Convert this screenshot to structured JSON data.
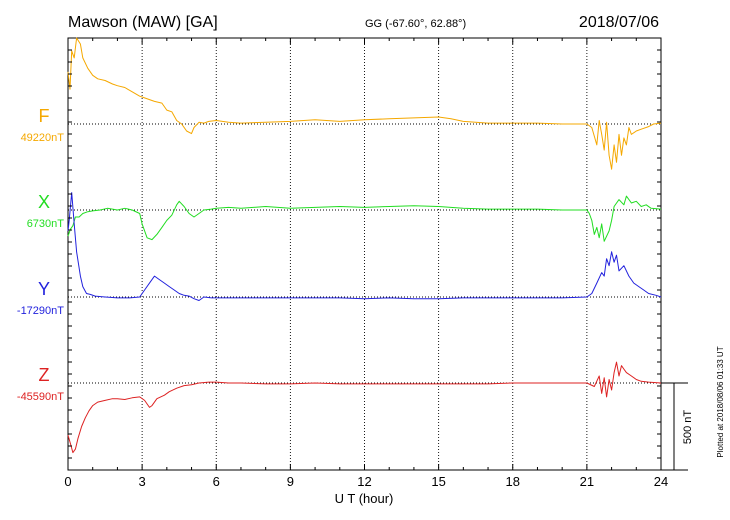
{
  "header": {
    "station": "Mawson (MAW)  [GA]",
    "coords": "GG (-67.60°,  62.88°)",
    "date": "2018/07/06"
  },
  "plotted_note": "Plotted at 2018/08/06 01:33 UT",
  "chart_data": {
    "type": "line",
    "xlabel": "U T (hour)",
    "xlim": [
      0,
      24
    ],
    "x_ticks": [
      0,
      3,
      6,
      9,
      12,
      15,
      18,
      21,
      24
    ],
    "x_tick_labels": [
      "0",
      "3",
      "6",
      "9",
      "12",
      "15",
      "18",
      "21",
      "24"
    ],
    "scale_bar": {
      "label": "500 nT",
      "value_nT": 500
    },
    "grid": true,
    "series": [
      {
        "name": "F",
        "baseline_label": "49220nT",
        "baseline_nT": 49220,
        "color": "#f5a800",
        "points": [
          [
            0.0,
            300
          ],
          [
            0.08,
            200
          ],
          [
            0.15,
            420
          ],
          [
            0.25,
            380
          ],
          [
            0.35,
            520
          ],
          [
            0.5,
            460
          ],
          [
            0.6,
            380
          ],
          [
            0.8,
            320
          ],
          [
            1.0,
            280
          ],
          [
            1.2,
            260
          ],
          [
            1.5,
            250
          ],
          [
            1.8,
            230
          ],
          [
            2.0,
            220
          ],
          [
            2.3,
            210
          ],
          [
            2.6,
            185
          ],
          [
            2.9,
            160
          ],
          [
            3.1,
            150
          ],
          [
            3.3,
            140
          ],
          [
            3.5,
            130
          ],
          [
            3.8,
            120
          ],
          [
            4.0,
            80
          ],
          [
            4.2,
            70
          ],
          [
            4.4,
            20
          ],
          [
            4.6,
            0
          ],
          [
            4.8,
            -40
          ],
          [
            5.0,
            -55
          ],
          [
            5.1,
            -20
          ],
          [
            5.3,
            10
          ],
          [
            5.5,
            5
          ],
          [
            5.7,
            15
          ],
          [
            6.0,
            20
          ],
          [
            6.5,
            10
          ],
          [
            7.0,
            5
          ],
          [
            8.0,
            10
          ],
          [
            9.0,
            15
          ],
          [
            10.0,
            25
          ],
          [
            11.0,
            15
          ],
          [
            12.0,
            25
          ],
          [
            13.0,
            30
          ],
          [
            14.0,
            35
          ],
          [
            15.0,
            40
          ],
          [
            15.5,
            30
          ],
          [
            16.0,
            15
          ],
          [
            17.0,
            5
          ],
          [
            18.0,
            5
          ],
          [
            19.0,
            5
          ],
          [
            20.0,
            0
          ],
          [
            21.0,
            0
          ],
          [
            21.2,
            -20
          ],
          [
            21.4,
            -120
          ],
          [
            21.5,
            20
          ],
          [
            21.6,
            -60
          ],
          [
            21.7,
            -150
          ],
          [
            21.8,
            10
          ],
          [
            21.9,
            -180
          ],
          [
            22.0,
            -260
          ],
          [
            22.1,
            -120
          ],
          [
            22.2,
            -220
          ],
          [
            22.3,
            -60
          ],
          [
            22.4,
            -180
          ],
          [
            22.5,
            -80
          ],
          [
            22.6,
            -120
          ],
          [
            22.7,
            -20
          ],
          [
            22.8,
            -60
          ],
          [
            23.0,
            -40
          ],
          [
            23.2,
            -30
          ],
          [
            23.5,
            -15
          ],
          [
            23.7,
            0
          ],
          [
            24.0,
            5
          ]
        ]
      },
      {
        "name": "X",
        "baseline_label": "6730nT",
        "baseline_nT": 6730,
        "color": "#22dd22",
        "points": [
          [
            0.0,
            -150
          ],
          [
            0.1,
            -110
          ],
          [
            0.2,
            -90
          ],
          [
            0.3,
            -40
          ],
          [
            0.45,
            -40
          ],
          [
            0.6,
            -20
          ],
          [
            0.8,
            -10
          ],
          [
            1.0,
            -5
          ],
          [
            1.3,
            0
          ],
          [
            1.6,
            10
          ],
          [
            2.0,
            0
          ],
          [
            2.3,
            10
          ],
          [
            2.6,
            0
          ],
          [
            2.9,
            -20
          ],
          [
            3.0,
            -80
          ],
          [
            3.2,
            -160
          ],
          [
            3.4,
            -170
          ],
          [
            3.6,
            -140
          ],
          [
            3.8,
            -100
          ],
          [
            4.0,
            -60
          ],
          [
            4.2,
            -30
          ],
          [
            4.4,
            30
          ],
          [
            4.5,
            50
          ],
          [
            4.7,
            20
          ],
          [
            4.9,
            -20
          ],
          [
            5.1,
            -40
          ],
          [
            5.3,
            -20
          ],
          [
            5.5,
            0
          ],
          [
            5.8,
            5
          ],
          [
            6.0,
            10
          ],
          [
            6.5,
            15
          ],
          [
            7.0,
            10
          ],
          [
            8.0,
            20
          ],
          [
            9.0,
            10
          ],
          [
            10.0,
            15
          ],
          [
            11.0,
            20
          ],
          [
            12.0,
            15
          ],
          [
            13.0,
            20
          ],
          [
            14.0,
            25
          ],
          [
            15.0,
            20
          ],
          [
            16.0,
            10
          ],
          [
            17.0,
            5
          ],
          [
            18.0,
            5
          ],
          [
            19.0,
            5
          ],
          [
            20.0,
            0
          ],
          [
            21.0,
            0
          ],
          [
            21.1,
            -20
          ],
          [
            21.2,
            -60
          ],
          [
            21.3,
            -140
          ],
          [
            21.4,
            -100
          ],
          [
            21.5,
            -160
          ],
          [
            21.6,
            -80
          ],
          [
            21.7,
            -180
          ],
          [
            21.9,
            -120
          ],
          [
            22.0,
            -60
          ],
          [
            22.1,
            20
          ],
          [
            22.3,
            60
          ],
          [
            22.5,
            30
          ],
          [
            22.6,
            80
          ],
          [
            22.8,
            40
          ],
          [
            23.0,
            50
          ],
          [
            23.2,
            20
          ],
          [
            23.4,
            30
          ],
          [
            23.6,
            10
          ],
          [
            24.0,
            5
          ]
        ]
      },
      {
        "name": "Y",
        "baseline_label": "-17290nT",
        "baseline_nT": -17290,
        "color": "#2222dd",
        "points": [
          [
            0.0,
            380
          ],
          [
            0.05,
            440
          ],
          [
            0.15,
            600
          ],
          [
            0.25,
            420
          ],
          [
            0.35,
            260
          ],
          [
            0.5,
            120
          ],
          [
            0.6,
            60
          ],
          [
            0.75,
            20
          ],
          [
            0.9,
            15
          ],
          [
            1.1,
            5
          ],
          [
            1.5,
            0
          ],
          [
            2.0,
            -5
          ],
          [
            2.5,
            -5
          ],
          [
            2.9,
            0
          ],
          [
            3.1,
            40
          ],
          [
            3.3,
            80
          ],
          [
            3.5,
            120
          ],
          [
            3.7,
            100
          ],
          [
            3.9,
            80
          ],
          [
            4.1,
            60
          ],
          [
            4.3,
            40
          ],
          [
            4.5,
            20
          ],
          [
            4.7,
            10
          ],
          [
            4.9,
            5
          ],
          [
            5.1,
            -10
          ],
          [
            5.3,
            -20
          ],
          [
            5.5,
            0
          ],
          [
            5.8,
            -5
          ],
          [
            6.0,
            -5
          ],
          [
            7.0,
            -5
          ],
          [
            8.0,
            -5
          ],
          [
            9.0,
            -5
          ],
          [
            10.0,
            -5
          ],
          [
            11.0,
            -5
          ],
          [
            12.0,
            -10
          ],
          [
            13.0,
            -5
          ],
          [
            14.0,
            -10
          ],
          [
            15.0,
            -10
          ],
          [
            16.0,
            -5
          ],
          [
            17.0,
            -5
          ],
          [
            18.0,
            -5
          ],
          [
            19.0,
            -5
          ],
          [
            20.0,
            -5
          ],
          [
            21.0,
            0
          ],
          [
            21.2,
            20
          ],
          [
            21.4,
            80
          ],
          [
            21.6,
            140
          ],
          [
            21.7,
            120
          ],
          [
            21.8,
            220
          ],
          [
            21.9,
            180
          ],
          [
            22.0,
            260
          ],
          [
            22.1,
            200
          ],
          [
            22.2,
            240
          ],
          [
            22.3,
            150
          ],
          [
            22.5,
            180
          ],
          [
            22.7,
            120
          ],
          [
            22.9,
            80
          ],
          [
            23.1,
            60
          ],
          [
            23.3,
            40
          ],
          [
            23.5,
            20
          ],
          [
            23.8,
            10
          ],
          [
            24.0,
            0
          ]
        ]
      },
      {
        "name": "Z",
        "baseline_label": "-45590nT",
        "baseline_nT": -45590,
        "color": "#dd2222",
        "points": [
          [
            0.0,
            -300
          ],
          [
            0.1,
            -350
          ],
          [
            0.2,
            -400
          ],
          [
            0.3,
            -380
          ],
          [
            0.4,
            -320
          ],
          [
            0.55,
            -250
          ],
          [
            0.7,
            -200
          ],
          [
            0.85,
            -160
          ],
          [
            1.0,
            -130
          ],
          [
            1.2,
            -110
          ],
          [
            1.5,
            -100
          ],
          [
            1.8,
            -90
          ],
          [
            2.0,
            -90
          ],
          [
            2.3,
            -95
          ],
          [
            2.6,
            -85
          ],
          [
            2.9,
            -80
          ],
          [
            3.1,
            -100
          ],
          [
            3.3,
            -140
          ],
          [
            3.4,
            -130
          ],
          [
            3.6,
            -90
          ],
          [
            3.9,
            -70
          ],
          [
            4.1,
            -50
          ],
          [
            4.4,
            -30
          ],
          [
            4.7,
            -15
          ],
          [
            5.0,
            -10
          ],
          [
            5.3,
            0
          ],
          [
            5.7,
            5
          ],
          [
            6.0,
            5
          ],
          [
            6.5,
            0
          ],
          [
            7.0,
            0
          ],
          [
            8.0,
            -5
          ],
          [
            9.0,
            -5
          ],
          [
            10.0,
            0
          ],
          [
            11.0,
            -5
          ],
          [
            12.0,
            -5
          ],
          [
            13.0,
            -5
          ],
          [
            14.0,
            -5
          ],
          [
            15.0,
            -5
          ],
          [
            16.0,
            -5
          ],
          [
            17.0,
            -5
          ],
          [
            18.0,
            0
          ],
          [
            19.0,
            0
          ],
          [
            20.0,
            0
          ],
          [
            21.0,
            0
          ],
          [
            21.3,
            -20
          ],
          [
            21.5,
            40
          ],
          [
            21.6,
            -60
          ],
          [
            21.7,
            30
          ],
          [
            21.8,
            -80
          ],
          [
            21.9,
            20
          ],
          [
            22.0,
            -40
          ],
          [
            22.1,
            60
          ],
          [
            22.2,
            120
          ],
          [
            22.3,
            40
          ],
          [
            22.4,
            100
          ],
          [
            22.5,
            80
          ],
          [
            22.6,
            60
          ],
          [
            22.8,
            40
          ],
          [
            23.0,
            20
          ],
          [
            23.2,
            10
          ],
          [
            23.5,
            5
          ],
          [
            24.0,
            0
          ]
        ]
      }
    ]
  }
}
